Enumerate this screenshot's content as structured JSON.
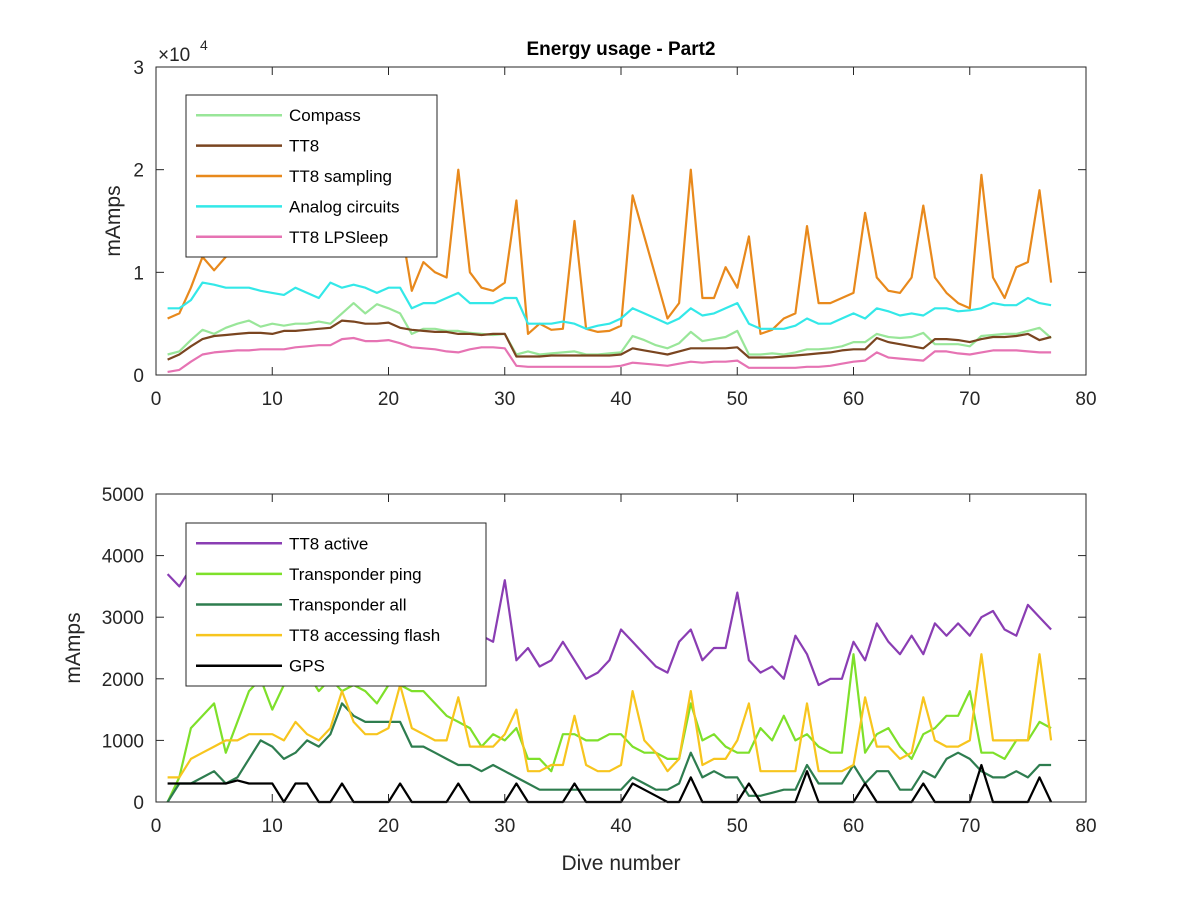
{
  "chart_data": [
    {
      "type": "line",
      "title": "Energy usage - Part2",
      "xlabel": "",
      "ylabel": "mAmps",
      "xlim": [
        0,
        80
      ],
      "ylim": [
        0,
        30000
      ],
      "xticks": [
        "0",
        "10",
        "20",
        "30",
        "40",
        "50",
        "60",
        "70",
        "80"
      ],
      "yticks": [
        "0",
        "1",
        "2",
        "3"
      ],
      "y_exponent": {
        "base": "×10",
        "power": "4"
      },
      "legend_position": "top-left",
      "grid": false,
      "x": [
        1,
        2,
        3,
        4,
        5,
        6,
        7,
        8,
        9,
        10,
        11,
        12,
        13,
        14,
        15,
        16,
        17,
        18,
        19,
        20,
        21,
        22,
        23,
        24,
        25,
        26,
        27,
        28,
        29,
        30,
        31,
        32,
        33,
        34,
        35,
        36,
        37,
        38,
        39,
        40,
        41,
        42,
        43,
        44,
        45,
        46,
        47,
        48,
        49,
        50,
        51,
        52,
        53,
        54,
        55,
        56,
        57,
        58,
        59,
        60,
        61,
        62,
        63,
        64,
        65,
        66,
        67,
        68,
        69,
        70,
        71,
        72,
        73,
        74,
        75,
        76,
        77
      ],
      "series": [
        {
          "name": "Compass",
          "color": "#99e699",
          "values": [
            2000,
            2300,
            3400,
            4400,
            4000,
            4600,
            5000,
            5300,
            4700,
            5000,
            4800,
            5000,
            5000,
            5200,
            5000,
            6000,
            7000,
            6000,
            6900,
            6500,
            6000,
            4000,
            4500,
            4500,
            4300,
            4300,
            4100,
            4000,
            3900,
            4000,
            2000,
            2300,
            2000,
            2100,
            2200,
            2300,
            2000,
            2000,
            2100,
            2200,
            3800,
            3400,
            2900,
            2600,
            3100,
            4200,
            3300,
            3500,
            3700,
            4300,
            2000,
            2000,
            2100,
            2000,
            2200,
            2500,
            2500,
            2600,
            2800,
            3200,
            3200,
            4000,
            3700,
            3600,
            3700,
            4100,
            3000,
            3000,
            3000,
            2800,
            3800,
            3900,
            4000,
            4000,
            4300,
            4600,
            3600
          ]
        },
        {
          "name": "TT8",
          "color": "#7a4520",
          "values": [
            1500,
            2000,
            2800,
            3500,
            3800,
            3900,
            4000,
            4100,
            4100,
            4000,
            4300,
            4300,
            4400,
            4500,
            4600,
            5300,
            5200,
            5000,
            5000,
            5100,
            4600,
            4400,
            4300,
            4200,
            4200,
            4000,
            4000,
            3900,
            4000,
            4000,
            1800,
            1800,
            1800,
            1900,
            1900,
            1900,
            1900,
            1900,
            1900,
            2000,
            2600,
            2400,
            2200,
            2000,
            2300,
            2600,
            2600,
            2600,
            2600,
            2700,
            1700,
            1700,
            1700,
            1800,
            1900,
            2000,
            2100,
            2200,
            2400,
            2500,
            2500,
            3600,
            3200,
            3000,
            2800,
            2600,
            3500,
            3500,
            3400,
            3200,
            3500,
            3700,
            3700,
            3800,
            4000,
            3400,
            3700
          ]
        },
        {
          "name": "TT8 sampling",
          "color": "#e8891c",
          "values": [
            5500,
            6000,
            8500,
            11500,
            10200,
            11500,
            12500,
            13500,
            12000,
            14500,
            12000,
            13000,
            14000,
            14500,
            13000,
            27000,
            16000,
            15000,
            16000,
            14000,
            15000,
            8200,
            11000,
            10000,
            9500,
            20000,
            10000,
            8500,
            8200,
            9000,
            17000,
            4000,
            5000,
            4400,
            4500,
            15000,
            4500,
            4200,
            4300,
            4800,
            17500,
            13500,
            9500,
            5500,
            7000,
            20000,
            7500,
            7500,
            10500,
            8500,
            13500,
            4000,
            4400,
            5500,
            6000,
            14500,
            7000,
            7000,
            7500,
            8000,
            15800,
            9500,
            8200,
            8000,
            9500,
            16500,
            9500,
            8000,
            7000,
            6500,
            19500,
            9500,
            7500,
            10500,
            11000,
            18000,
            9000
          ]
        },
        {
          "name": "Analog circuits",
          "color": "#33e8e8",
          "values": [
            6500,
            6500,
            7300,
            9000,
            8800,
            8500,
            8500,
            8500,
            8200,
            8000,
            7800,
            8500,
            8000,
            7500,
            9000,
            8500,
            8800,
            8500,
            8000,
            8500,
            8500,
            6500,
            7000,
            7000,
            7500,
            8000,
            7000,
            7000,
            7000,
            7500,
            7500,
            5000,
            5000,
            5000,
            5200,
            5000,
            4500,
            4800,
            5000,
            5500,
            6500,
            6000,
            5500,
            5000,
            5500,
            6500,
            5800,
            6000,
            6500,
            7000,
            5000,
            4500,
            4500,
            4500,
            4800,
            5500,
            5000,
            5000,
            5500,
            6000,
            5500,
            6500,
            6200,
            5800,
            6000,
            5800,
            6500,
            6500,
            6200,
            6300,
            6500,
            7000,
            6800,
            6800,
            7500,
            7000,
            6800
          ]
        },
        {
          "name": "TT8 LPSleep",
          "color": "#e673b3",
          "values": [
            300,
            500,
            1300,
            2000,
            2200,
            2300,
            2400,
            2400,
            2500,
            2500,
            2500,
            2700,
            2800,
            2900,
            2900,
            3500,
            3600,
            3300,
            3300,
            3400,
            3100,
            2700,
            2600,
            2500,
            2300,
            2200,
            2500,
            2700,
            2700,
            2600,
            900,
            800,
            800,
            800,
            800,
            800,
            800,
            800,
            800,
            900,
            1200,
            1100,
            1000,
            900,
            1100,
            1300,
            1200,
            1300,
            1300,
            1400,
            700,
            700,
            700,
            700,
            700,
            800,
            800,
            900,
            1100,
            1300,
            1400,
            2200,
            1700,
            1600,
            1500,
            1400,
            2300,
            2300,
            2100,
            2000,
            2200,
            2400,
            2400,
            2400,
            2300,
            2200,
            2200
          ]
        }
      ]
    },
    {
      "type": "line",
      "title": "",
      "xlabel": "Dive number",
      "ylabel": "mAmps",
      "xlim": [
        0,
        80
      ],
      "ylim": [
        0,
        5000
      ],
      "xticks": [
        "0",
        "10",
        "20",
        "30",
        "40",
        "50",
        "60",
        "70",
        "80"
      ],
      "yticks": [
        "0",
        "1000",
        "2000",
        "3000",
        "4000",
        "5000"
      ],
      "legend_position": "top-left",
      "grid": false,
      "x": [
        1,
        2,
        3,
        4,
        5,
        6,
        7,
        8,
        9,
        10,
        11,
        12,
        13,
        14,
        15,
        16,
        17,
        18,
        19,
        20,
        21,
        22,
        23,
        24,
        25,
        26,
        27,
        28,
        29,
        30,
        31,
        32,
        33,
        34,
        35,
        36,
        37,
        38,
        39,
        40,
        41,
        42,
        43,
        44,
        45,
        46,
        47,
        48,
        49,
        50,
        51,
        52,
        53,
        54,
        55,
        56,
        57,
        58,
        59,
        60,
        61,
        62,
        63,
        64,
        65,
        66,
        67,
        68,
        69,
        70,
        71,
        72,
        73,
        74,
        75,
        76,
        77
      ],
      "series": [
        {
          "name": "TT8 active",
          "color": "#8a3db3",
          "values": [
            3700,
            3500,
            3800,
            3700,
            3800,
            3900,
            3700,
            3600,
            3700,
            3800,
            3600,
            3700,
            3900,
            3800,
            3700,
            3900,
            3500,
            3400,
            3500,
            3300,
            3200,
            3100,
            3100,
            3000,
            2900,
            2800,
            2900,
            2700,
            2600,
            3600,
            2300,
            2500,
            2200,
            2300,
            2600,
            2300,
            2000,
            2100,
            2300,
            2800,
            2600,
            2400,
            2200,
            2100,
            2600,
            2800,
            2300,
            2500,
            2500,
            3400,
            2300,
            2100,
            2200,
            2000,
            2700,
            2400,
            1900,
            2000,
            2000,
            2600,
            2300,
            2900,
            2600,
            2400,
            2700,
            2400,
            2900,
            2700,
            2900,
            2700,
            3000,
            3100,
            2800,
            2700,
            3200,
            3000,
            2800
          ]
        },
        {
          "name": "Transponder ping",
          "color": "#7ee02a",
          "values": [
            0,
            400,
            1200,
            1400,
            1600,
            800,
            1300,
            1800,
            2000,
            1500,
            1900,
            2200,
            2100,
            1800,
            2000,
            1800,
            1900,
            1800,
            1600,
            1900,
            1900,
            1800,
            1800,
            1600,
            1400,
            1300,
            1200,
            900,
            1100,
            1000,
            1200,
            700,
            700,
            500,
            1100,
            1100,
            1000,
            1000,
            1100,
            1100,
            900,
            800,
            800,
            700,
            700,
            1600,
            1000,
            1100,
            900,
            800,
            800,
            1200,
            1000,
            1400,
            1000,
            1100,
            900,
            800,
            800,
            2400,
            800,
            1100,
            1200,
            900,
            700,
            1100,
            1200,
            1400,
            1400,
            1800,
            800,
            800,
            700,
            1000,
            1000,
            1300,
            1200
          ]
        },
        {
          "name": "Transponder all",
          "color": "#2e7d4f",
          "values": [
            0,
            300,
            300,
            400,
            500,
            300,
            400,
            700,
            1000,
            900,
            700,
            800,
            1000,
            900,
            1100,
            1600,
            1400,
            1300,
            1300,
            1300,
            1300,
            900,
            900,
            800,
            700,
            600,
            600,
            500,
            600,
            500,
            400,
            300,
            200,
            200,
            200,
            200,
            200,
            200,
            200,
            200,
            400,
            300,
            200,
            200,
            300,
            800,
            400,
            500,
            400,
            400,
            100,
            100,
            150,
            200,
            200,
            600,
            300,
            300,
            300,
            600,
            300,
            500,
            500,
            200,
            200,
            500,
            400,
            700,
            800,
            700,
            500,
            400,
            400,
            500,
            400,
            600,
            600
          ]
        },
        {
          "name": "TT8 accessing flash",
          "color": "#f7c51e",
          "values": [
            400,
            400,
            700,
            800,
            900,
            1000,
            1000,
            1100,
            1100,
            1100,
            1000,
            1300,
            1100,
            1000,
            1200,
            1800,
            1300,
            1100,
            1100,
            1200,
            1900,
            1200,
            1100,
            1000,
            1000,
            1700,
            900,
            900,
            900,
            1100,
            1500,
            500,
            500,
            600,
            600,
            1400,
            600,
            500,
            500,
            600,
            1800,
            1000,
            800,
            500,
            700,
            1800,
            600,
            700,
            700,
            1000,
            1600,
            500,
            500,
            500,
            500,
            1600,
            500,
            500,
            500,
            600,
            1700,
            900,
            900,
            700,
            800,
            1700,
            1000,
            900,
            900,
            1000,
            2400,
            1000,
            1000,
            1000,
            1000,
            2400,
            1000
          ]
        },
        {
          "name": "GPS",
          "color": "#000000",
          "values": [
            300,
            300,
            300,
            300,
            300,
            300,
            350,
            300,
            300,
            300,
            0,
            300,
            300,
            0,
            0,
            300,
            0,
            0,
            0,
            0,
            300,
            0,
            0,
            0,
            0,
            300,
            0,
            0,
            0,
            0,
            300,
            0,
            0,
            0,
            0,
            300,
            0,
            0,
            0,
            0,
            300,
            200,
            100,
            0,
            0,
            400,
            0,
            0,
            0,
            0,
            300,
            0,
            0,
            0,
            0,
            500,
            0,
            0,
            0,
            0,
            300,
            0,
            0,
            0,
            0,
            300,
            0,
            0,
            0,
            0,
            600,
            0,
            0,
            0,
            0,
            400,
            0
          ]
        }
      ]
    }
  ]
}
